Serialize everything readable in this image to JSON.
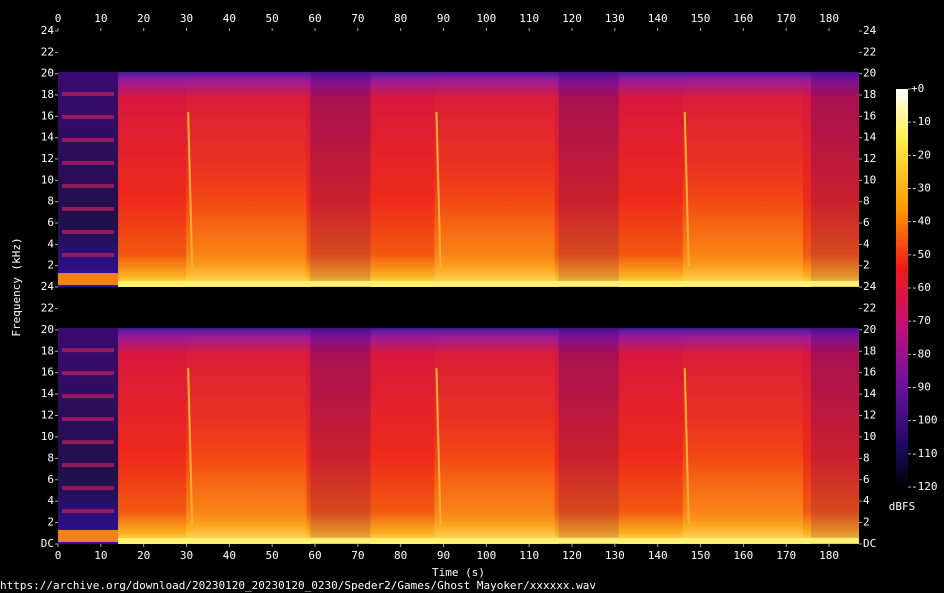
{
  "chart_data": [
    {
      "type": "spectrogram",
      "channel": 1,
      "xlim": [
        0,
        187
      ],
      "xticks": [
        0,
        10,
        20,
        30,
        40,
        50,
        60,
        70,
        80,
        90,
        100,
        110,
        120,
        130,
        140,
        150,
        160,
        170,
        180
      ],
      "ylim": [
        0,
        24
      ],
      "yticks": [
        2,
        4,
        6,
        8,
        10,
        12,
        14,
        16,
        18,
        20,
        22,
        24
      ],
      "y_label": "Frequency (kHz)"
    },
    {
      "type": "spectrogram",
      "channel": 2,
      "xlim": [
        0,
        187
      ],
      "xticks": [
        0,
        10,
        20,
        30,
        40,
        50,
        60,
        70,
        80,
        90,
        100,
        110,
        120,
        130,
        140,
        150,
        160,
        170,
        180
      ],
      "ylim": [
        0,
        24
      ],
      "yticks": [
        {
          "value": 0,
          "label": "DC"
        },
        2,
        4,
        6,
        8,
        10,
        12,
        14,
        16,
        18,
        20,
        22,
        24
      ],
      "x_label": "Time (s)"
    },
    {
      "type": "colorbar",
      "ylim": [
        -120,
        0
      ],
      "yticks": [
        {
          "value": 0,
          "label": "+0"
        },
        -10,
        -20,
        -30,
        -40,
        -50,
        -60,
        -70,
        -80,
        -90,
        -100,
        -110,
        -120
      ],
      "label": "dBFS"
    }
  ],
  "footer": "https://archive.org/download/20230120_20230120_0230/Speder2/Games/Ghost Mayoker/xxxxxx.wav"
}
